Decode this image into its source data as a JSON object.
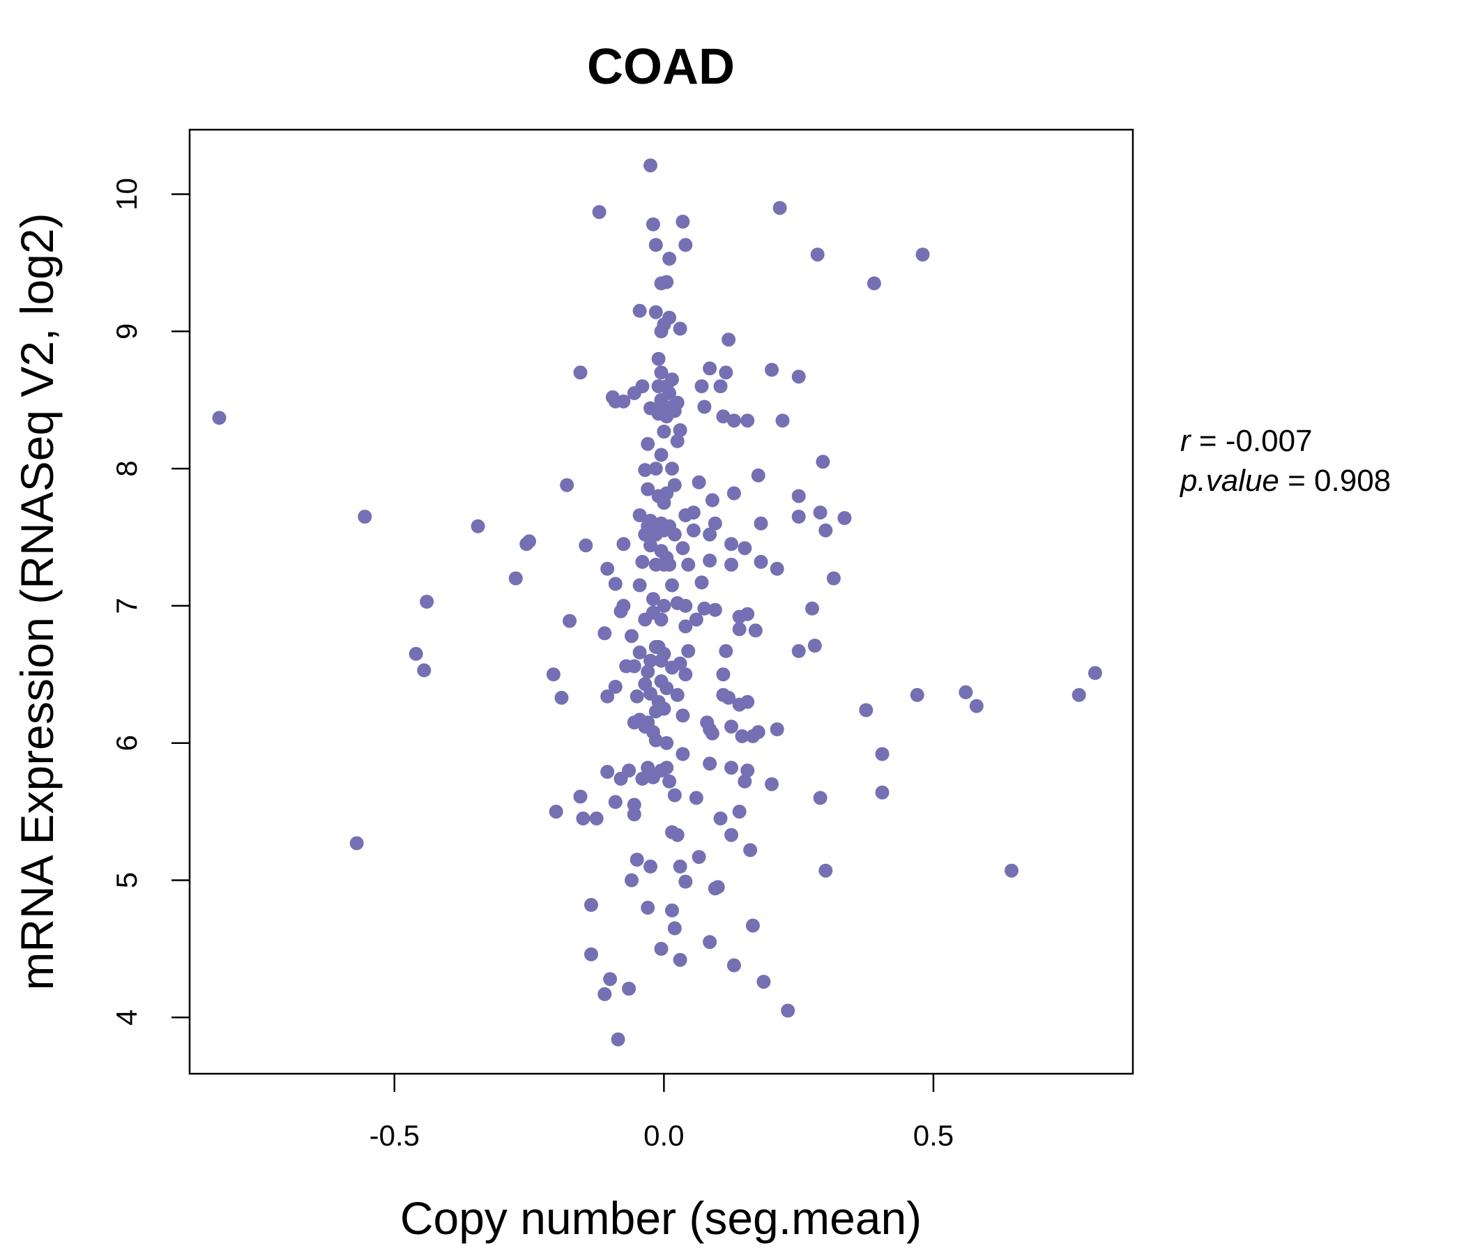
{
  "chart_data": {
    "type": "scatter",
    "title": "COAD",
    "xlabel": "Copy number (seg.mean)",
    "ylabel": "mRNA Expression (RNASeq V2, log2)",
    "xlim": [
      -0.88,
      0.87
    ],
    "ylim": [
      3.59,
      10.47
    ],
    "x_ticks": [
      -0.5,
      0.0,
      0.5
    ],
    "x_tick_labels": [
      "-0.5",
      "0.0",
      "0.5"
    ],
    "y_ticks": [
      4,
      5,
      6,
      7,
      8,
      9,
      10
    ],
    "y_tick_labels": [
      "4",
      "5",
      "6",
      "7",
      "8",
      "9",
      "10"
    ],
    "grid": false,
    "colors": {
      "points": "#7570b3",
      "title": "#7570b3"
    },
    "stats": {
      "r_label": "r",
      "r_value": "-0.007",
      "p_label": "p.value",
      "p_value": "0.908"
    },
    "points": [
      [
        -0.825,
        8.37
      ],
      [
        -0.555,
        7.65
      ],
      [
        -0.57,
        5.27
      ],
      [
        -0.46,
        6.65
      ],
      [
        -0.445,
        6.53
      ],
      [
        -0.44,
        7.03
      ],
      [
        -0.345,
        7.58
      ],
      [
        -0.275,
        7.2
      ],
      [
        -0.255,
        7.45
      ],
      [
        -0.25,
        7.47
      ],
      [
        -0.205,
        6.5
      ],
      [
        -0.2,
        5.5
      ],
      [
        -0.19,
        6.33
      ],
      [
        -0.18,
        7.88
      ],
      [
        -0.175,
        6.89
      ],
      [
        -0.155,
        8.7
      ],
      [
        -0.155,
        5.61
      ],
      [
        -0.15,
        5.45
      ],
      [
        -0.145,
        7.44
      ],
      [
        -0.135,
        4.82
      ],
      [
        -0.135,
        4.46
      ],
      [
        -0.125,
        5.45
      ],
      [
        -0.12,
        9.87
      ],
      [
        -0.11,
        6.8
      ],
      [
        -0.11,
        4.17
      ],
      [
        -0.105,
        5.79
      ],
      [
        -0.105,
        6.34
      ],
      [
        -0.105,
        7.27
      ],
      [
        -0.1,
        4.28
      ],
      [
        -0.095,
        8.52
      ],
      [
        -0.09,
        8.49
      ],
      [
        -0.09,
        7.16
      ],
      [
        -0.09,
        6.41
      ],
      [
        -0.09,
        5.57
      ],
      [
        -0.085,
        3.84
      ],
      [
        -0.08,
        6.96
      ],
      [
        -0.08,
        5.74
      ],
      [
        -0.075,
        8.49
      ],
      [
        -0.075,
        7.45
      ],
      [
        -0.075,
        7.0
      ],
      [
        -0.07,
        6.56
      ],
      [
        -0.065,
        5.8
      ],
      [
        -0.065,
        4.21
      ],
      [
        -0.06,
        6.78
      ],
      [
        -0.06,
        5.0
      ],
      [
        -0.055,
        8.55
      ],
      [
        -0.055,
        6.56
      ],
      [
        -0.055,
        6.15
      ],
      [
        -0.055,
        5.55
      ],
      [
        -0.055,
        5.48
      ],
      [
        -0.05,
        6.34
      ],
      [
        -0.05,
        5.15
      ],
      [
        -0.045,
        9.15
      ],
      [
        -0.045,
        7.66
      ],
      [
        -0.045,
        7.15
      ],
      [
        -0.045,
        6.66
      ],
      [
        -0.045,
        6.17
      ],
      [
        -0.04,
        8.6
      ],
      [
        -0.04,
        7.32
      ],
      [
        -0.04,
        5.74
      ],
      [
        -0.035,
        7.99
      ],
      [
        -0.035,
        7.52
      ],
      [
        -0.035,
        6.9
      ],
      [
        -0.035,
        6.43
      ],
      [
        -0.035,
        6.12
      ],
      [
        -0.03,
        8.18
      ],
      [
        -0.03,
        7.85
      ],
      [
        -0.03,
        7.58
      ],
      [
        -0.03,
        6.52
      ],
      [
        -0.03,
        6.15
      ],
      [
        -0.03,
        5.82
      ],
      [
        -0.03,
        4.8
      ],
      [
        -0.025,
        10.21
      ],
      [
        -0.025,
        8.44
      ],
      [
        -0.025,
        7.62
      ],
      [
        -0.025,
        7.44
      ],
      [
        -0.025,
        6.6
      ],
      [
        -0.025,
        6.36
      ],
      [
        -0.025,
        5.1
      ],
      [
        -0.02,
        9.78
      ],
      [
        -0.02,
        7.05
      ],
      [
        -0.02,
        6.95
      ],
      [
        -0.02,
        6.08
      ],
      [
        -0.02,
        5.75
      ],
      [
        -0.015,
        9.63
      ],
      [
        -0.015,
        9.14
      ],
      [
        -0.015,
        8.0
      ],
      [
        -0.015,
        7.52
      ],
      [
        -0.015,
        7.3
      ],
      [
        -0.015,
        6.7
      ],
      [
        -0.015,
        6.23
      ],
      [
        -0.015,
        6.02
      ],
      [
        -0.01,
        8.8
      ],
      [
        -0.01,
        8.6
      ],
      [
        -0.01,
        8.4
      ],
      [
        -0.01,
        7.8
      ],
      [
        -0.01,
        7.55
      ],
      [
        -0.01,
        6.7
      ],
      [
        -0.01,
        6.3
      ],
      [
        -0.005,
        9.35
      ],
      [
        -0.005,
        9.0
      ],
      [
        -0.005,
        8.7
      ],
      [
        -0.005,
        8.5
      ],
      [
        -0.005,
        8.1
      ],
      [
        -0.005,
        7.6
      ],
      [
        -0.005,
        7.4
      ],
      [
        -0.005,
        6.9
      ],
      [
        -0.005,
        6.6
      ],
      [
        -0.005,
        6.45
      ],
      [
        -0.005,
        5.8
      ],
      [
        -0.005,
        4.5
      ],
      [
        0.0,
        9.05
      ],
      [
        0.0,
        8.45
      ],
      [
        0.0,
        8.27
      ],
      [
        0.0,
        7.75
      ],
      [
        0.0,
        7.55
      ],
      [
        0.0,
        7.3
      ],
      [
        0.0,
        7.0
      ],
      [
        0.0,
        6.65
      ],
      [
        0.0,
        6.25
      ],
      [
        0.005,
        9.36
      ],
      [
        0.005,
        8.6
      ],
      [
        0.005,
        8.38
      ],
      [
        0.005,
        7.82
      ],
      [
        0.005,
        7.35
      ],
      [
        0.005,
        6.4
      ],
      [
        0.005,
        6.0
      ],
      [
        0.005,
        5.82
      ],
      [
        0.01,
        9.53
      ],
      [
        0.01,
        9.1
      ],
      [
        0.01,
        8.55
      ],
      [
        0.01,
        7.58
      ],
      [
        0.01,
        7.3
      ],
      [
        0.01,
        5.72
      ],
      [
        0.015,
        8.65
      ],
      [
        0.015,
        8.45
      ],
      [
        0.015,
        8.0
      ],
      [
        0.015,
        7.15
      ],
      [
        0.015,
        6.55
      ],
      [
        0.015,
        5.35
      ],
      [
        0.015,
        4.78
      ],
      [
        0.02,
        8.42
      ],
      [
        0.02,
        7.88
      ],
      [
        0.02,
        7.52
      ],
      [
        0.02,
        5.62
      ],
      [
        0.02,
        4.65
      ],
      [
        0.025,
        8.48
      ],
      [
        0.025,
        8.2
      ],
      [
        0.025,
        7.02
      ],
      [
        0.025,
        6.35
      ],
      [
        0.025,
        5.33
      ],
      [
        0.03,
        9.02
      ],
      [
        0.03,
        8.28
      ],
      [
        0.03,
        6.58
      ],
      [
        0.03,
        5.1
      ],
      [
        0.03,
        4.42
      ],
      [
        0.035,
        9.8
      ],
      [
        0.035,
        7.42
      ],
      [
        0.035,
        6.2
      ],
      [
        0.035,
        5.92
      ],
      [
        0.04,
        9.63
      ],
      [
        0.04,
        7.66
      ],
      [
        0.04,
        7.0
      ],
      [
        0.04,
        6.85
      ],
      [
        0.04,
        6.5
      ],
      [
        0.04,
        4.99
      ],
      [
        0.045,
        7.3
      ],
      [
        0.045,
        6.67
      ],
      [
        0.055,
        7.68
      ],
      [
        0.055,
        7.55
      ],
      [
        0.06,
        6.9
      ],
      [
        0.06,
        5.6
      ],
      [
        0.065,
        7.9
      ],
      [
        0.065,
        5.17
      ],
      [
        0.07,
        8.6
      ],
      [
        0.07,
        7.17
      ],
      [
        0.075,
        8.45
      ],
      [
        0.075,
        6.98
      ],
      [
        0.08,
        6.15
      ],
      [
        0.085,
        8.73
      ],
      [
        0.085,
        7.52
      ],
      [
        0.085,
        7.33
      ],
      [
        0.085,
        6.1
      ],
      [
        0.085,
        5.85
      ],
      [
        0.085,
        4.55
      ],
      [
        0.09,
        7.77
      ],
      [
        0.09,
        6.07
      ],
      [
        0.095,
        7.6
      ],
      [
        0.095,
        6.97
      ],
      [
        0.095,
        4.94
      ],
      [
        0.1,
        4.95
      ],
      [
        0.105,
        8.6
      ],
      [
        0.105,
        5.45
      ],
      [
        0.11,
        8.38
      ],
      [
        0.11,
        6.5
      ],
      [
        0.11,
        6.35
      ],
      [
        0.115,
        8.7
      ],
      [
        0.115,
        6.67
      ],
      [
        0.12,
        8.94
      ],
      [
        0.12,
        6.33
      ],
      [
        0.125,
        7.45
      ],
      [
        0.125,
        7.3
      ],
      [
        0.125,
        6.12
      ],
      [
        0.125,
        5.82
      ],
      [
        0.125,
        5.33
      ],
      [
        0.13,
        8.35
      ],
      [
        0.13,
        7.82
      ],
      [
        0.13,
        4.38
      ],
      [
        0.14,
        6.92
      ],
      [
        0.14,
        6.83
      ],
      [
        0.14,
        6.28
      ],
      [
        0.14,
        5.5
      ],
      [
        0.145,
        6.05
      ],
      [
        0.15,
        7.42
      ],
      [
        0.15,
        5.72
      ],
      [
        0.155,
        8.35
      ],
      [
        0.155,
        6.94
      ],
      [
        0.155,
        6.3
      ],
      [
        0.155,
        5.8
      ],
      [
        0.16,
        5.22
      ],
      [
        0.165,
        6.05
      ],
      [
        0.165,
        4.67
      ],
      [
        0.17,
        6.82
      ],
      [
        0.175,
        7.95
      ],
      [
        0.175,
        6.08
      ],
      [
        0.18,
        7.6
      ],
      [
        0.18,
        7.32
      ],
      [
        0.185,
        4.26
      ],
      [
        0.2,
        8.72
      ],
      [
        0.2,
        5.7
      ],
      [
        0.21,
        7.27
      ],
      [
        0.21,
        6.1
      ],
      [
        0.215,
        9.9
      ],
      [
        0.22,
        8.35
      ],
      [
        0.23,
        4.05
      ],
      [
        0.25,
        8.67
      ],
      [
        0.25,
        7.8
      ],
      [
        0.25,
        7.65
      ],
      [
        0.25,
        6.67
      ],
      [
        0.275,
        6.98
      ],
      [
        0.28,
        6.71
      ],
      [
        0.285,
        9.56
      ],
      [
        0.29,
        7.68
      ],
      [
        0.29,
        5.6
      ],
      [
        0.295,
        8.05
      ],
      [
        0.3,
        7.55
      ],
      [
        0.3,
        5.07
      ],
      [
        0.315,
        7.2
      ],
      [
        0.335,
        7.64
      ],
      [
        0.375,
        6.24
      ],
      [
        0.39,
        9.35
      ],
      [
        0.405,
        5.92
      ],
      [
        0.405,
        5.64
      ],
      [
        0.47,
        6.35
      ],
      [
        0.48,
        9.56
      ],
      [
        0.56,
        6.37
      ],
      [
        0.58,
        6.27
      ],
      [
        0.645,
        5.07
      ],
      [
        0.77,
        6.35
      ],
      [
        0.8,
        6.51
      ]
    ]
  }
}
